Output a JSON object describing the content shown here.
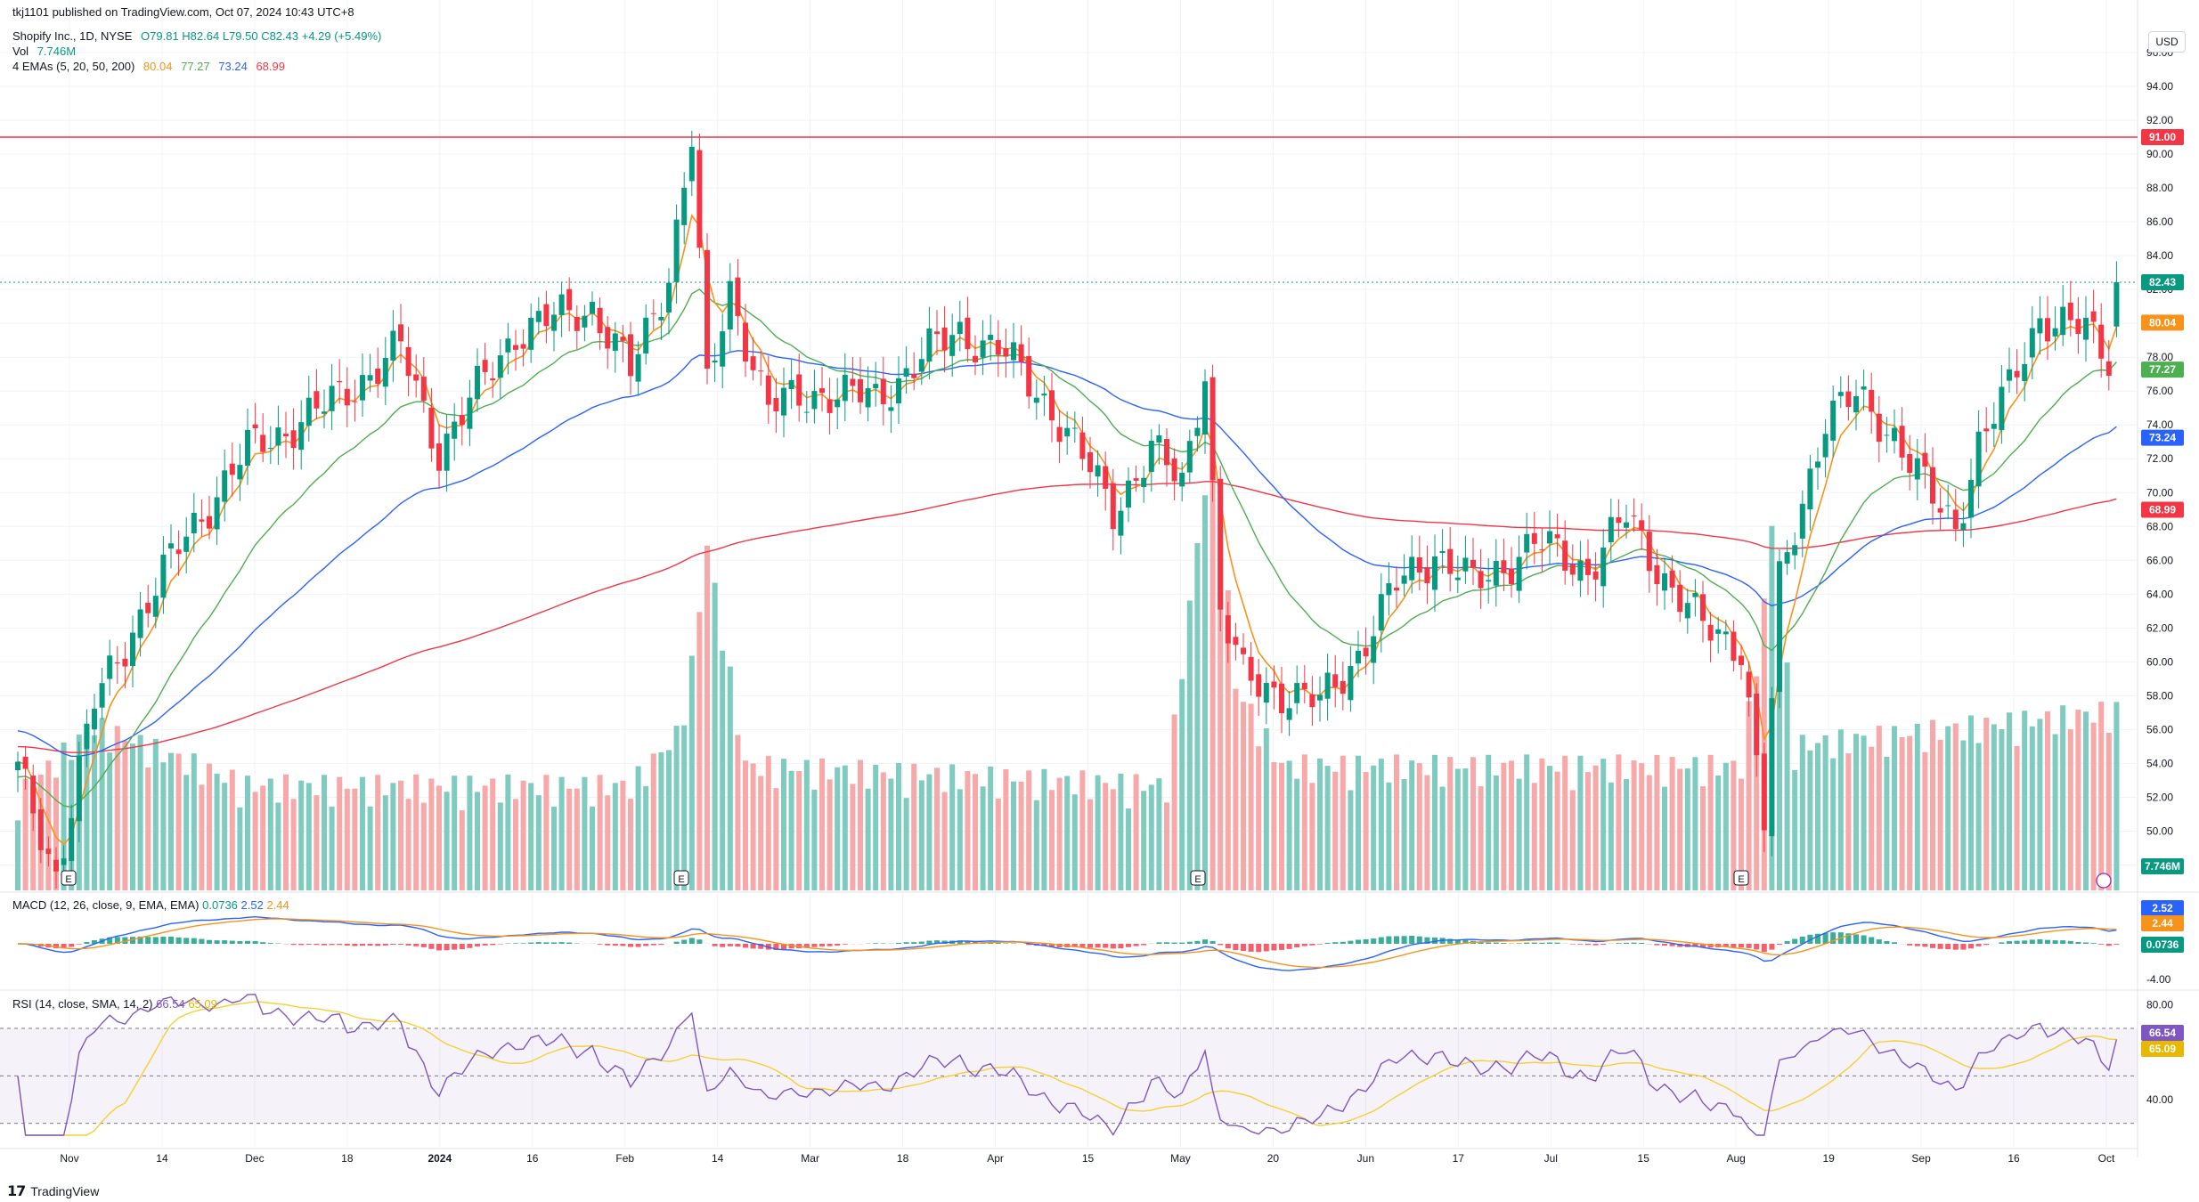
{
  "published": "tkj1101 published on TradingView.com, Oct 07, 2024 10:43 UTC+8",
  "header": {
    "symbol": "Shopify Inc., 1D, NYSE",
    "ohlc": "O79.81 H82.64 L79.50 C82.43 +4.29 (+5.49%)",
    "vol_label": "Vol",
    "vol_value": "7.746M",
    "ema_label": "4 EMAs (5, 20, 50, 200)",
    "ema_values": [
      "80.04",
      "77.27",
      "73.24",
      "68.99"
    ]
  },
  "currency_button": "USD",
  "macd_label": "MACD (12, 26, close, 9, EMA, EMA)",
  "macd_values": [
    "0.0736",
    "2.52",
    "2.44"
  ],
  "rsi_label": "RSI (14, close, SMA, 14, 2)",
  "rsi_values": [
    "66.54",
    "65.09"
  ],
  "footer": "TradingView",
  "colors": {
    "up": "#089981",
    "down": "#f23645",
    "up_vol": "#7fcbc0",
    "down_vol": "#f7a9a9",
    "ema5": "#f7931a",
    "ema20": "#4caf50",
    "ema50": "#2962ff",
    "ema200": "#f23645",
    "rsi": "#7e57c2",
    "rsi_ma": "#f5d033",
    "resistance": "#f23645",
    "grid": "#f0f3fa"
  },
  "chart_data": {
    "type": "candlestick",
    "price_axis_ticks": [
      "96.00",
      "94.00",
      "92.00",
      "90.00",
      "88.00",
      "86.00",
      "84.00",
      "82.00",
      "80.00",
      "78.00",
      "76.00",
      "74.00",
      "72.00",
      "70.00",
      "68.00",
      "66.00",
      "64.00",
      "62.00",
      "60.00",
      "58.00",
      "56.00",
      "54.00",
      "52.00",
      "50.00",
      "48.00"
    ],
    "time_axis_ticks": [
      "Nov",
      "14",
      "Dec",
      "18",
      "2024",
      "16",
      "Feb",
      "14",
      "Mar",
      "18",
      "Apr",
      "15",
      "May",
      "20",
      "Jun",
      "17",
      "Jul",
      "15",
      "Aug",
      "19",
      "Sep",
      "16",
      "Oct"
    ],
    "price_labels": {
      "resistance": "91.00",
      "last": "82.43",
      "ema5": "80.04",
      "ema20": "77.27",
      "ema50": "73.24",
      "ema200": "68.99",
      "volume": "7.746M"
    },
    "resistance_level": 91.0,
    "last_price": 82.43,
    "ylim": [
      46.5,
      97
    ],
    "macd_axis_ticks": [
      "-4.00"
    ],
    "rsi_axis_ticks": [
      "80.00",
      "40.00"
    ],
    "rsi_ylim": [
      25,
      85
    ],
    "earnings_markers": [
      "E",
      "E",
      "E",
      "E"
    ],
    "close_anchors": [
      {
        "d": 0,
        "v": 53.5
      },
      {
        "d": 5,
        "v": 47.5
      },
      {
        "d": 10,
        "v": 57.5
      },
      {
        "d": 15,
        "v": 62.0
      },
      {
        "d": 22,
        "v": 67.5
      },
      {
        "d": 30,
        "v": 72.5
      },
      {
        "d": 40,
        "v": 75.0
      },
      {
        "d": 50,
        "v": 78.5
      },
      {
        "d": 55,
        "v": 72.5
      },
      {
        "d": 65,
        "v": 79.5
      },
      {
        "d": 75,
        "v": 81.0
      },
      {
        "d": 80,
        "v": 77.0
      },
      {
        "d": 85,
        "v": 83.0
      },
      {
        "d": 88,
        "v": 91.0
      },
      {
        "d": 90,
        "v": 76.0
      },
      {
        "d": 93,
        "v": 82.0
      },
      {
        "d": 98,
        "v": 75.0
      },
      {
        "d": 105,
        "v": 76.0
      },
      {
        "d": 112,
        "v": 75.5
      },
      {
        "d": 118,
        "v": 78.0
      },
      {
        "d": 123,
        "v": 79.5
      },
      {
        "d": 128,
        "v": 78.5
      },
      {
        "d": 135,
        "v": 75.0
      },
      {
        "d": 143,
        "v": 69.0
      },
      {
        "d": 148,
        "v": 72.5
      },
      {
        "d": 152,
        "v": 70.5
      },
      {
        "d": 155,
        "v": 77.5
      },
      {
        "d": 157,
        "v": 63.0
      },
      {
        "d": 160,
        "v": 59.0
      },
      {
        "d": 170,
        "v": 57.5
      },
      {
        "d": 175,
        "v": 60.5
      },
      {
        "d": 180,
        "v": 64.5
      },
      {
        "d": 185,
        "v": 66.5
      },
      {
        "d": 190,
        "v": 64.5
      },
      {
        "d": 198,
        "v": 67.0
      },
      {
        "d": 205,
        "v": 65.5
      },
      {
        "d": 210,
        "v": 68.5
      },
      {
        "d": 215,
        "v": 65.0
      },
      {
        "d": 220,
        "v": 62.0
      },
      {
        "d": 225,
        "v": 61.0
      },
      {
        "d": 228,
        "v": 50.5
      },
      {
        "d": 230,
        "v": 64.5
      },
      {
        "d": 236,
        "v": 74.5
      },
      {
        "d": 240,
        "v": 75.5
      },
      {
        "d": 245,
        "v": 73.5
      },
      {
        "d": 250,
        "v": 69.5
      },
      {
        "d": 253,
        "v": 68.0
      },
      {
        "d": 256,
        "v": 73.0
      },
      {
        "d": 260,
        "v": 76.0
      },
      {
        "d": 264,
        "v": 80.5
      },
      {
        "d": 270,
        "v": 79.5
      },
      {
        "d": 273,
        "v": 78.0
      },
      {
        "d": 274,
        "v": 82.43
      }
    ],
    "volume_anchors": [
      {
        "d": 0,
        "v": 3.5
      },
      {
        "d": 10,
        "v": 7.0
      },
      {
        "d": 30,
        "v": 4.0
      },
      {
        "d": 80,
        "v": 4.0
      },
      {
        "d": 86,
        "v": 6.5
      },
      {
        "d": 88,
        "v": 10.0
      },
      {
        "d": 90,
        "v": 16.0
      },
      {
        "d": 95,
        "v": 5.0
      },
      {
        "d": 150,
        "v": 4.0
      },
      {
        "d": 156,
        "v": 22.0
      },
      {
        "d": 159,
        "v": 9.0
      },
      {
        "d": 165,
        "v": 5.0
      },
      {
        "d": 225,
        "v": 5.0
      },
      {
        "d": 228,
        "v": 13.0
      },
      {
        "d": 229,
        "v": 17.0
      },
      {
        "d": 232,
        "v": 6.0
      },
      {
        "d": 274,
        "v": 7.746
      }
    ]
  }
}
